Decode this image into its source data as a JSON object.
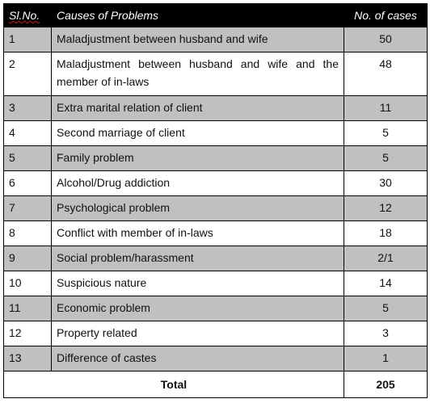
{
  "table": {
    "headers": {
      "sl_no": "Sl.No.",
      "cause": "Causes of Problems",
      "cases": "No. of cases"
    },
    "rows": [
      {
        "sl": "1",
        "cause": "Maladjustment between husband and wife",
        "cases": "50"
      },
      {
        "sl": "2",
        "cause": "Maladjustment between husband and wife and the member of in-laws",
        "cases": "48"
      },
      {
        "sl": "3",
        "cause": "Extra marital relation of client",
        "cases": "11"
      },
      {
        "sl": "4",
        "cause": "Second marriage of client",
        "cases": "5"
      },
      {
        "sl": "5",
        "cause": "Family problem",
        "cases": "5"
      },
      {
        "sl": "6",
        "cause": "Alcohol/Drug addiction",
        "cases": "30"
      },
      {
        "sl": "7",
        "cause": "Psychological problem",
        "cases": "12"
      },
      {
        "sl": "8",
        "cause": "Conflict with member of in-laws",
        "cases": "18"
      },
      {
        "sl": "9",
        "cause": "Social problem/harassment",
        "cases": "2/1"
      },
      {
        "sl": "10",
        "cause": "Suspicious nature",
        "cases": "14"
      },
      {
        "sl": "11",
        "cause": "Economic problem",
        "cases": "5"
      },
      {
        "sl": "12",
        "cause": "Property related",
        "cases": "3"
      },
      {
        "sl": "13",
        "cause": "Difference of castes",
        "cases": "1"
      }
    ],
    "total": {
      "label": "Total",
      "value": "205"
    },
    "colors": {
      "header_bg": "#000000",
      "header_text": "#ffffff",
      "shaded_row_bg": "#c0c0c0",
      "plain_row_bg": "#ffffff"
    }
  }
}
